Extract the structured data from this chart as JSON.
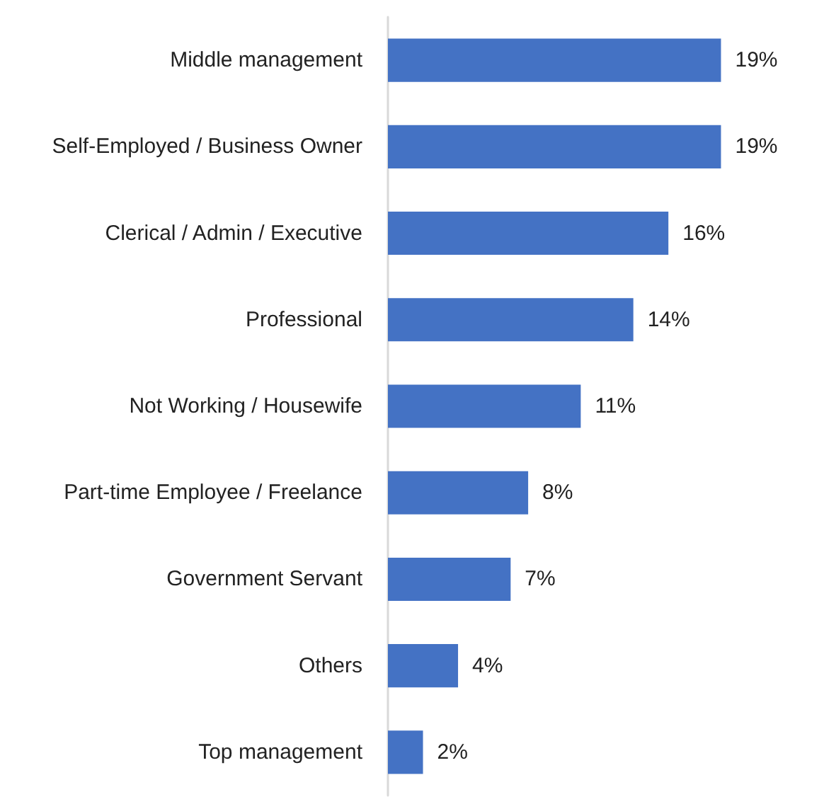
{
  "chart_data": {
    "type": "bar",
    "orientation": "horizontal",
    "categories": [
      "Middle management",
      "Self-Employed / Business Owner",
      "Clerical / Admin / Executive",
      "Professional",
      "Not Working / Housewife",
      "Part-time Employee / Freelance",
      "Government Servant",
      "Others",
      "Top management"
    ],
    "values": [
      19,
      19,
      16,
      14,
      11,
      8,
      7,
      4,
      2
    ],
    "value_labels": [
      "19%",
      "19%",
      "16%",
      "14%",
      "11%",
      "8%",
      "7%",
      "4%",
      "2%"
    ],
    "color": "#4472c4"
  }
}
